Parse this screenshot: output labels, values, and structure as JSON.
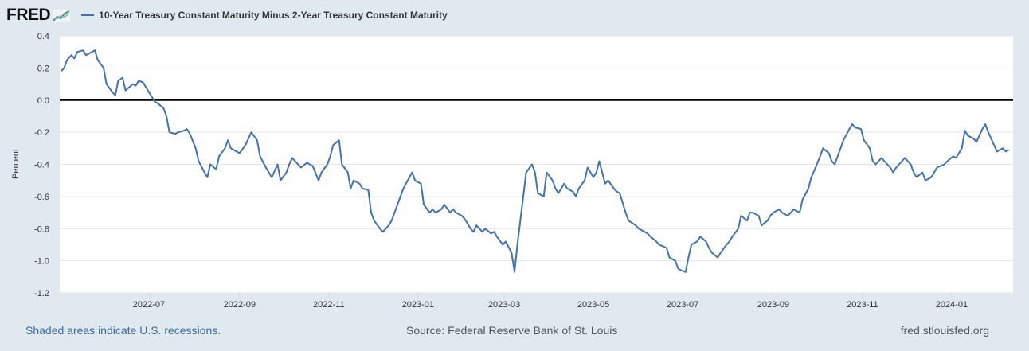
{
  "header": {
    "logo_text": "FRED",
    "series_title": "10-Year Treasury Constant Maturity Minus 2-Year Treasury Constant Maturity",
    "series_color": "#4572a7"
  },
  "footer": {
    "recession_note": "Shaded areas indicate U.S. recessions.",
    "source": "Source: Federal Reserve Bank of St. Louis",
    "site": "fred.stlouisfed.org"
  },
  "chart_data": {
    "type": "line",
    "title": "10-Year Treasury Constant Maturity Minus 2-Year Treasury Constant Maturity",
    "ylabel": "Percent",
    "xlabel": "",
    "ylim": [
      -1.2,
      0.4
    ],
    "yticks": [
      {
        "value": 0.4,
        "label": "0.4"
      },
      {
        "value": 0.2,
        "label": "0.2"
      },
      {
        "value": 0.0,
        "label": "0.0"
      },
      {
        "value": -0.2,
        "label": "-0.2"
      },
      {
        "value": -0.4,
        "label": "-0.4"
      },
      {
        "value": -0.6,
        "label": "-0.6"
      },
      {
        "value": -0.8,
        "label": "-0.8"
      },
      {
        "value": -1.0,
        "label": "-1.0"
      },
      {
        "value": -1.2,
        "label": "-1.2"
      }
    ],
    "xrange": [
      "2022-05-01",
      "2024-02-12"
    ],
    "xticks": [
      {
        "date": "2022-07-01",
        "label": "2022-07"
      },
      {
        "date": "2022-09-01",
        "label": "2022-09"
      },
      {
        "date": "2022-11-01",
        "label": "2022-11"
      },
      {
        "date": "2023-01-01",
        "label": "2023-01"
      },
      {
        "date": "2023-03-01",
        "label": "2023-03"
      },
      {
        "date": "2023-05-01",
        "label": "2023-05"
      },
      {
        "date": "2023-07-01",
        "label": "2023-07"
      },
      {
        "date": "2023-09-01",
        "label": "2023-09"
      },
      {
        "date": "2023-11-01",
        "label": "2023-11"
      },
      {
        "date": "2024-01-01",
        "label": "2024-01"
      }
    ],
    "zero_line": 0.0,
    "series": [
      {
        "name": "10-Year Treasury Constant Maturity Minus 2-Year Treasury Constant Maturity",
        "color": "#4572a7",
        "points": [
          [
            "2022-05-02",
            0.18
          ],
          [
            "2022-05-04",
            0.2
          ],
          [
            "2022-05-06",
            0.25
          ],
          [
            "2022-05-09",
            0.28
          ],
          [
            "2022-05-11",
            0.26
          ],
          [
            "2022-05-13",
            0.3
          ],
          [
            "2022-05-17",
            0.31
          ],
          [
            "2022-05-19",
            0.28
          ],
          [
            "2022-05-23",
            0.3
          ],
          [
            "2022-05-25",
            0.31
          ],
          [
            "2022-05-27",
            0.25
          ],
          [
            "2022-05-31",
            0.2
          ],
          [
            "2022-06-02",
            0.1
          ],
          [
            "2022-06-06",
            0.05
          ],
          [
            "2022-06-08",
            0.03
          ],
          [
            "2022-06-10",
            0.12
          ],
          [
            "2022-06-13",
            0.14
          ],
          [
            "2022-06-15",
            0.06
          ],
          [
            "2022-06-20",
            0.1
          ],
          [
            "2022-06-22",
            0.09
          ],
          [
            "2022-06-24",
            0.12
          ],
          [
            "2022-06-27",
            0.11
          ],
          [
            "2022-06-29",
            0.08
          ],
          [
            "2022-07-01",
            0.05
          ],
          [
            "2022-07-05",
            -0.01
          ],
          [
            "2022-07-07",
            -0.02
          ],
          [
            "2022-07-11",
            -0.05
          ],
          [
            "2022-07-13",
            -0.1
          ],
          [
            "2022-07-15",
            -0.2
          ],
          [
            "2022-07-19",
            -0.21
          ],
          [
            "2022-07-21",
            -0.2
          ],
          [
            "2022-07-25",
            -0.19
          ],
          [
            "2022-07-27",
            -0.18
          ],
          [
            "2022-07-29",
            -0.21
          ],
          [
            "2022-08-02",
            -0.3
          ],
          [
            "2022-08-04",
            -0.38
          ],
          [
            "2022-08-08",
            -0.45
          ],
          [
            "2022-08-10",
            -0.48
          ],
          [
            "2022-08-12",
            -0.4
          ],
          [
            "2022-08-16",
            -0.43
          ],
          [
            "2022-08-18",
            -0.35
          ],
          [
            "2022-08-22",
            -0.3
          ],
          [
            "2022-08-24",
            -0.25
          ],
          [
            "2022-08-26",
            -0.3
          ],
          [
            "2022-08-30",
            -0.32
          ],
          [
            "2022-09-01",
            -0.33
          ],
          [
            "2022-09-05",
            -0.28
          ],
          [
            "2022-09-09",
            -0.2
          ],
          [
            "2022-09-13",
            -0.25
          ],
          [
            "2022-09-15",
            -0.35
          ],
          [
            "2022-09-19",
            -0.42
          ],
          [
            "2022-09-21",
            -0.45
          ],
          [
            "2022-09-23",
            -0.48
          ],
          [
            "2022-09-27",
            -0.4
          ],
          [
            "2022-09-29",
            -0.5
          ],
          [
            "2022-10-03",
            -0.45
          ],
          [
            "2022-10-05",
            -0.4
          ],
          [
            "2022-10-07",
            -0.36
          ],
          [
            "2022-10-11",
            -0.4
          ],
          [
            "2022-10-13",
            -0.42
          ],
          [
            "2022-10-17",
            -0.39
          ],
          [
            "2022-10-21",
            -0.41
          ],
          [
            "2022-10-25",
            -0.5
          ],
          [
            "2022-10-27",
            -0.45
          ],
          [
            "2022-10-31",
            -0.4
          ],
          [
            "2022-11-02",
            -0.35
          ],
          [
            "2022-11-04",
            -0.28
          ],
          [
            "2022-11-08",
            -0.25
          ],
          [
            "2022-11-10",
            -0.4
          ],
          [
            "2022-11-14",
            -0.45
          ],
          [
            "2022-11-16",
            -0.55
          ],
          [
            "2022-11-18",
            -0.5
          ],
          [
            "2022-11-22",
            -0.52
          ],
          [
            "2022-11-24",
            -0.55
          ],
          [
            "2022-11-28",
            -0.56
          ],
          [
            "2022-11-30",
            -0.7
          ],
          [
            "2022-12-02",
            -0.75
          ],
          [
            "2022-12-06",
            -0.8
          ],
          [
            "2022-12-08",
            -0.82
          ],
          [
            "2022-12-12",
            -0.78
          ],
          [
            "2022-12-14",
            -0.75
          ],
          [
            "2022-12-16",
            -0.7
          ],
          [
            "2022-12-20",
            -0.6
          ],
          [
            "2022-12-22",
            -0.55
          ],
          [
            "2022-12-28",
            -0.45
          ],
          [
            "2022-12-30",
            -0.5
          ],
          [
            "2023-01-03",
            -0.52
          ],
          [
            "2023-01-05",
            -0.65
          ],
          [
            "2023-01-09",
            -0.7
          ],
          [
            "2023-01-11",
            -0.68
          ],
          [
            "2023-01-13",
            -0.7
          ],
          [
            "2023-01-17",
            -0.68
          ],
          [
            "2023-01-19",
            -0.65
          ],
          [
            "2023-01-23",
            -0.7
          ],
          [
            "2023-01-25",
            -0.68
          ],
          [
            "2023-01-27",
            -0.7
          ],
          [
            "2023-01-31",
            -0.72
          ],
          [
            "2023-02-02",
            -0.74
          ],
          [
            "2023-02-06",
            -0.8
          ],
          [
            "2023-02-08",
            -0.82
          ],
          [
            "2023-02-10",
            -0.78
          ],
          [
            "2023-02-14",
            -0.82
          ],
          [
            "2023-02-16",
            -0.8
          ],
          [
            "2023-02-20",
            -0.83
          ],
          [
            "2023-02-22",
            -0.82
          ],
          [
            "2023-02-24",
            -0.85
          ],
          [
            "2023-02-28",
            -0.9
          ],
          [
            "2023-03-02",
            -0.88
          ],
          [
            "2023-03-06",
            -0.95
          ],
          [
            "2023-03-08",
            -1.07
          ],
          [
            "2023-03-10",
            -0.9
          ],
          [
            "2023-03-14",
            -0.6
          ],
          [
            "2023-03-16",
            -0.45
          ],
          [
            "2023-03-20",
            -0.4
          ],
          [
            "2023-03-22",
            -0.45
          ],
          [
            "2023-03-24",
            -0.58
          ],
          [
            "2023-03-28",
            -0.6
          ],
          [
            "2023-03-30",
            -0.45
          ],
          [
            "2023-04-03",
            -0.5
          ],
          [
            "2023-04-05",
            -0.55
          ],
          [
            "2023-04-07",
            -0.58
          ],
          [
            "2023-04-11",
            -0.52
          ],
          [
            "2023-04-13",
            -0.55
          ],
          [
            "2023-04-17",
            -0.57
          ],
          [
            "2023-04-19",
            -0.6
          ],
          [
            "2023-04-21",
            -0.55
          ],
          [
            "2023-04-25",
            -0.5
          ],
          [
            "2023-04-27",
            -0.42
          ],
          [
            "2023-05-01",
            -0.48
          ],
          [
            "2023-05-03",
            -0.45
          ],
          [
            "2023-05-05",
            -0.38
          ],
          [
            "2023-05-09",
            -0.52
          ],
          [
            "2023-05-11",
            -0.5
          ],
          [
            "2023-05-15",
            -0.55
          ],
          [
            "2023-05-17",
            -0.57
          ],
          [
            "2023-05-19",
            -0.58
          ],
          [
            "2023-05-23",
            -0.7
          ],
          [
            "2023-05-25",
            -0.75
          ],
          [
            "2023-05-30",
            -0.78
          ],
          [
            "2023-06-01",
            -0.8
          ],
          [
            "2023-06-05",
            -0.82
          ],
          [
            "2023-06-07",
            -0.83
          ],
          [
            "2023-06-09",
            -0.85
          ],
          [
            "2023-06-13",
            -0.88
          ],
          [
            "2023-06-15",
            -0.9
          ],
          [
            "2023-06-20",
            -0.92
          ],
          [
            "2023-06-22",
            -0.98
          ],
          [
            "2023-06-26",
            -1.0
          ],
          [
            "2023-06-28",
            -1.05
          ],
          [
            "2023-06-30",
            -1.06
          ],
          [
            "2023-07-03",
            -1.07
          ],
          [
            "2023-07-05",
            -0.98
          ],
          [
            "2023-07-07",
            -0.9
          ],
          [
            "2023-07-11",
            -0.88
          ],
          [
            "2023-07-13",
            -0.85
          ],
          [
            "2023-07-17",
            -0.88
          ],
          [
            "2023-07-19",
            -0.92
          ],
          [
            "2023-07-21",
            -0.95
          ],
          [
            "2023-07-25",
            -0.98
          ],
          [
            "2023-07-27",
            -0.95
          ],
          [
            "2023-07-31",
            -0.9
          ],
          [
            "2023-08-02",
            -0.88
          ],
          [
            "2023-08-04",
            -0.85
          ],
          [
            "2023-08-08",
            -0.8
          ],
          [
            "2023-08-10",
            -0.72
          ],
          [
            "2023-08-14",
            -0.75
          ],
          [
            "2023-08-16",
            -0.7
          ],
          [
            "2023-08-18",
            -0.7
          ],
          [
            "2023-08-22",
            -0.72
          ],
          [
            "2023-08-24",
            -0.78
          ],
          [
            "2023-08-28",
            -0.75
          ],
          [
            "2023-08-30",
            -0.72
          ],
          [
            "2023-09-01",
            -0.7
          ],
          [
            "2023-09-05",
            -0.68
          ],
          [
            "2023-09-07",
            -0.7
          ],
          [
            "2023-09-11",
            -0.72
          ],
          [
            "2023-09-13",
            -0.7
          ],
          [
            "2023-09-15",
            -0.68
          ],
          [
            "2023-09-19",
            -0.7
          ],
          [
            "2023-09-21",
            -0.62
          ],
          [
            "2023-09-25",
            -0.55
          ],
          [
            "2023-09-27",
            -0.48
          ],
          [
            "2023-09-29",
            -0.44
          ],
          [
            "2023-10-03",
            -0.35
          ],
          [
            "2023-10-05",
            -0.3
          ],
          [
            "2023-10-09",
            -0.33
          ],
          [
            "2023-10-11",
            -0.38
          ],
          [
            "2023-10-13",
            -0.4
          ],
          [
            "2023-10-17",
            -0.3
          ],
          [
            "2023-10-19",
            -0.25
          ],
          [
            "2023-10-23",
            -0.18
          ],
          [
            "2023-10-25",
            -0.15
          ],
          [
            "2023-10-27",
            -0.17
          ],
          [
            "2023-10-31",
            -0.18
          ],
          [
            "2023-11-02",
            -0.25
          ],
          [
            "2023-11-06",
            -0.3
          ],
          [
            "2023-11-08",
            -0.38
          ],
          [
            "2023-11-10",
            -0.4
          ],
          [
            "2023-11-14",
            -0.36
          ],
          [
            "2023-11-16",
            -0.38
          ],
          [
            "2023-11-20",
            -0.42
          ],
          [
            "2023-11-22",
            -0.45
          ],
          [
            "2023-11-24",
            -0.42
          ],
          [
            "2023-11-28",
            -0.38
          ],
          [
            "2023-11-30",
            -0.36
          ],
          [
            "2023-12-04",
            -0.4
          ],
          [
            "2023-12-06",
            -0.45
          ],
          [
            "2023-12-08",
            -0.48
          ],
          [
            "2023-12-12",
            -0.45
          ],
          [
            "2023-12-14",
            -0.5
          ],
          [
            "2023-12-18",
            -0.48
          ],
          [
            "2023-12-20",
            -0.45
          ],
          [
            "2023-12-22",
            -0.42
          ],
          [
            "2023-12-27",
            -0.4
          ],
          [
            "2023-12-29",
            -0.38
          ],
          [
            "2024-01-02",
            -0.35
          ],
          [
            "2024-01-04",
            -0.36
          ],
          [
            "2024-01-08",
            -0.3
          ],
          [
            "2024-01-10",
            -0.19
          ],
          [
            "2024-01-12",
            -0.22
          ],
          [
            "2024-01-16",
            -0.24
          ],
          [
            "2024-01-18",
            -0.26
          ],
          [
            "2024-01-22",
            -0.18
          ],
          [
            "2024-01-24",
            -0.15
          ],
          [
            "2024-01-26",
            -0.2
          ],
          [
            "2024-01-30",
            -0.28
          ],
          [
            "2024-02-01",
            -0.32
          ],
          [
            "2024-02-05",
            -0.3
          ],
          [
            "2024-02-07",
            -0.32
          ],
          [
            "2024-02-09",
            -0.31
          ]
        ]
      }
    ]
  }
}
